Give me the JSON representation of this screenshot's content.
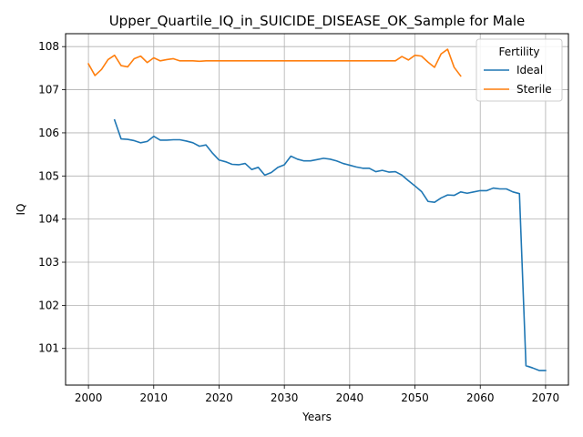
{
  "chart_data": {
    "type": "line",
    "title": "Upper_Quartile_IQ_in_SUICIDE_DISEASE_OK_Sample for Male",
    "xlabel": "Years",
    "ylabel": "IQ",
    "xlim": [
      1996.5,
      2073.5
    ],
    "ylim": [
      100.15,
      108.3
    ],
    "xticks": [
      2000,
      2010,
      2020,
      2030,
      2040,
      2050,
      2060,
      2070
    ],
    "yticks": [
      101,
      102,
      103,
      104,
      105,
      106,
      107,
      108
    ],
    "grid": true,
    "legend": {
      "title": "Fertility",
      "position": "top-right"
    },
    "series": [
      {
        "name": "Ideal",
        "color": "#1f77b4",
        "x": [
          2004,
          2005,
          2006,
          2007,
          2008,
          2009,
          2010,
          2011,
          2012,
          2013,
          2014,
          2015,
          2016,
          2017,
          2018,
          2019,
          2020,
          2021,
          2022,
          2023,
          2024,
          2025,
          2026,
          2027,
          2028,
          2029,
          2030,
          2031,
          2032,
          2033,
          2034,
          2035,
          2036,
          2037,
          2038,
          2039,
          2040,
          2041,
          2042,
          2043,
          2044,
          2045,
          2046,
          2047,
          2048,
          2049,
          2050,
          2051,
          2052,
          2053,
          2054,
          2055,
          2056,
          2057,
          2058,
          2059,
          2060,
          2061,
          2062,
          2063,
          2064,
          2065,
          2066,
          2067,
          2068,
          2069,
          2070
        ],
        "values": [
          106.3,
          105.86,
          105.85,
          105.82,
          105.77,
          105.8,
          105.92,
          105.83,
          105.83,
          105.84,
          105.84,
          105.81,
          105.77,
          105.69,
          105.72,
          105.53,
          105.37,
          105.33,
          105.27,
          105.26,
          105.29,
          105.15,
          105.2,
          105.02,
          105.08,
          105.2,
          105.26,
          105.46,
          105.39,
          105.35,
          105.35,
          105.38,
          105.41,
          105.39,
          105.35,
          105.29,
          105.25,
          105.21,
          105.18,
          105.18,
          105.1,
          105.13,
          105.09,
          105.1,
          105.02,
          104.89,
          104.77,
          104.64,
          104.41,
          104.39,
          104.49,
          104.56,
          104.55,
          104.63,
          104.6,
          104.63,
          104.66,
          104.66,
          104.72,
          104.7,
          104.7,
          104.63,
          104.59,
          100.6,
          100.55,
          100.49,
          100.49
        ]
      },
      {
        "name": "Sterile",
        "color": "#ff7f0e",
        "x": [
          2000,
          2001,
          2002,
          2003,
          2004,
          2005,
          2006,
          2007,
          2008,
          2009,
          2010,
          2011,
          2012,
          2013,
          2014,
          2015,
          2016,
          2017,
          2018,
          2019,
          2020,
          2021,
          2022,
          2023,
          2024,
          2025,
          2026,
          2027,
          2028,
          2029,
          2030,
          2031,
          2032,
          2033,
          2034,
          2035,
          2036,
          2037,
          2038,
          2039,
          2040,
          2041,
          2042,
          2043,
          2044,
          2045,
          2046,
          2047,
          2048,
          2049,
          2050,
          2051,
          2052,
          2053,
          2054,
          2055,
          2056,
          2057
        ],
        "values": [
          107.6,
          107.33,
          107.47,
          107.7,
          107.8,
          107.56,
          107.53,
          107.72,
          107.78,
          107.63,
          107.74,
          107.67,
          107.7,
          107.72,
          107.67,
          107.67,
          107.67,
          107.66,
          107.67,
          107.67,
          107.67,
          107.67,
          107.67,
          107.67,
          107.67,
          107.67,
          107.67,
          107.67,
          107.67,
          107.67,
          107.67,
          107.67,
          107.67,
          107.67,
          107.67,
          107.67,
          107.67,
          107.67,
          107.67,
          107.67,
          107.67,
          107.67,
          107.67,
          107.67,
          107.67,
          107.67,
          107.67,
          107.67,
          107.77,
          107.69,
          107.8,
          107.78,
          107.64,
          107.52,
          107.83,
          107.94,
          107.52,
          107.32
        ]
      }
    ]
  }
}
